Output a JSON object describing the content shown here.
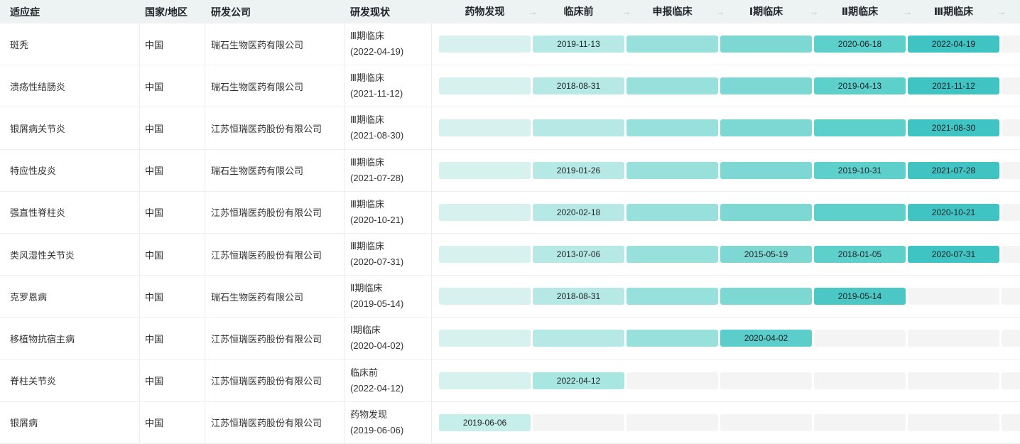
{
  "header": {
    "columns": [
      "适应症",
      "国家/地区",
      "研发公司",
      "研发现状"
    ],
    "stages": [
      "药物发现",
      "临床前",
      "申报临床",
      "Ⅰ期临床",
      "Ⅱ期临床",
      "Ⅲ期临床"
    ],
    "arrow_icon": "→"
  },
  "colors": {
    "header_bg": "#edf2f2",
    "inactive": "#f4f4f5",
    "stage_base": [
      "#d7f1ee",
      "#b6e9e5",
      "#98e0dc",
      "#7dd7d3",
      "#5ed0cc",
      "#4bc9c7"
    ],
    "stage_current": [
      "#c6eeea",
      "#a8e6e1",
      "#89dcd8",
      "#5bcdca",
      "#4bc8c6",
      "#3fc4c3"
    ]
  },
  "rows": [
    {
      "indication": "斑秃",
      "region": "中国",
      "company": "瑞石生物医药有限公司",
      "status_stage": "Ⅲ期临床",
      "status_date": "(2022-04-19)",
      "active_through": 5,
      "current_stage_index": 5,
      "stage_dates": [
        "",
        "2019-11-13",
        "",
        "",
        "2020-06-18",
        "2022-04-19"
      ]
    },
    {
      "indication": "溃疡性结肠炎",
      "region": "中国",
      "company": "瑞石生物医药有限公司",
      "status_stage": "Ⅲ期临床",
      "status_date": "(2021-11-12)",
      "active_through": 5,
      "current_stage_index": 5,
      "stage_dates": [
        "",
        "2018-08-31",
        "",
        "",
        "2019-04-13",
        "2021-11-12"
      ]
    },
    {
      "indication": "银屑病关节炎",
      "region": "中国",
      "company": "江苏恒瑞医药股份有限公司",
      "status_stage": "Ⅲ期临床",
      "status_date": "(2021-08-30)",
      "active_through": 5,
      "current_stage_index": 5,
      "stage_dates": [
        "",
        "",
        "",
        "",
        "",
        "2021-08-30"
      ]
    },
    {
      "indication": "特应性皮炎",
      "region": "中国",
      "company": "瑞石生物医药有限公司",
      "status_stage": "Ⅲ期临床",
      "status_date": "(2021-07-28)",
      "active_through": 5,
      "current_stage_index": 5,
      "stage_dates": [
        "",
        "2019-01-26",
        "",
        "",
        "2019-10-31",
        "2021-07-28"
      ]
    },
    {
      "indication": "强直性脊柱炎",
      "region": "中国",
      "company": "江苏恒瑞医药股份有限公司",
      "status_stage": "Ⅲ期临床",
      "status_date": "(2020-10-21)",
      "active_through": 5,
      "current_stage_index": 5,
      "stage_dates": [
        "",
        "2020-02-18",
        "",
        "",
        "",
        "2020-10-21"
      ]
    },
    {
      "indication": "类风湿性关节炎",
      "region": "中国",
      "company": "江苏恒瑞医药股份有限公司",
      "status_stage": "Ⅲ期临床",
      "status_date": "(2020-07-31)",
      "active_through": 5,
      "current_stage_index": 5,
      "stage_dates": [
        "",
        "2013-07-06",
        "",
        "2015-05-19",
        "2018-01-05",
        "2020-07-31"
      ]
    },
    {
      "indication": "克罗恩病",
      "region": "中国",
      "company": "瑞石生物医药有限公司",
      "status_stage": "Ⅱ期临床",
      "status_date": "(2019-05-14)",
      "active_through": 4,
      "current_stage_index": 4,
      "stage_dates": [
        "",
        "2018-08-31",
        "",
        "",
        "2019-05-14",
        ""
      ]
    },
    {
      "indication": "移植物抗宿主病",
      "region": "中国",
      "company": "江苏恒瑞医药股份有限公司",
      "status_stage": "Ⅰ期临床",
      "status_date": "(2020-04-02)",
      "active_through": 3,
      "current_stage_index": 3,
      "stage_dates": [
        "",
        "",
        "",
        "2020-04-02",
        "",
        ""
      ]
    },
    {
      "indication": "脊柱关节炎",
      "region": "中国",
      "company": "江苏恒瑞医药股份有限公司",
      "status_stage": "临床前",
      "status_date": "(2022-04-12)",
      "active_through": 1,
      "current_stage_index": 1,
      "stage_dates": [
        "",
        "2022-04-12",
        "",
        "",
        "",
        ""
      ]
    },
    {
      "indication": "银屑病",
      "region": "中国",
      "company": "江苏恒瑞医药股份有限公司",
      "status_stage": "药物发现",
      "status_date": "(2019-06-06)",
      "active_through": 0,
      "current_stage_index": 0,
      "stage_dates": [
        "2019-06-06",
        "",
        "",
        "",
        "",
        ""
      ]
    }
  ]
}
